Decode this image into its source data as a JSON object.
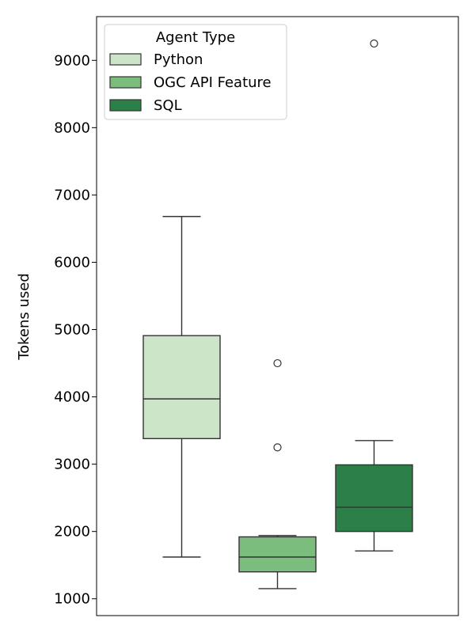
{
  "chart_data": {
    "type": "boxplot",
    "ylabel": "Tokens used",
    "xlabel": "",
    "ylim": [
      750,
      9650
    ],
    "yticks": [
      1000,
      2000,
      3000,
      4000,
      5000,
      6000,
      7000,
      8000,
      9000
    ],
    "grid": false,
    "legend": {
      "title": "Agent Type",
      "placement": "top-left",
      "entries": [
        "Python",
        "OGC API Feature",
        "SQL"
      ]
    },
    "series": [
      {
        "name": "Python",
        "color": "#cce5c8",
        "whisker_low": 1620,
        "q1": 3380,
        "median": 3970,
        "q3": 4910,
        "whisker_high": 6680,
        "outliers": []
      },
      {
        "name": "OGC API Feature",
        "color": "#7bbd7d",
        "whisker_low": 1150,
        "q1": 1400,
        "median": 1620,
        "q3": 1920,
        "whisker_high": 1940,
        "outliers": [
          3250,
          4500
        ]
      },
      {
        "name": "SQL",
        "color": "#2b7f47",
        "whisker_low": 1710,
        "q1": 2000,
        "median": 2360,
        "q3": 2990,
        "whisker_high": 3350,
        "outliers": [
          9250
        ]
      }
    ]
  }
}
